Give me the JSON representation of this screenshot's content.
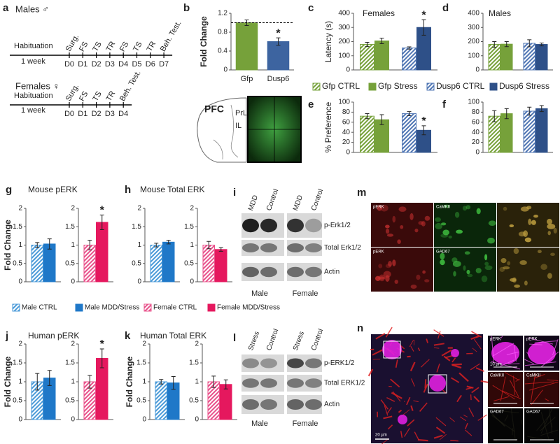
{
  "timeline": {
    "panel": "a",
    "tracks": [
      {
        "title": "Males ♂",
        "habituation": "Habituation",
        "duration": "1 week",
        "days": [
          "D0",
          "D1",
          "D2",
          "D3",
          "D4",
          "D5",
          "D6",
          "D7"
        ],
        "events": [
          "Surg.",
          "FS",
          "TS",
          "TR",
          "FS",
          "TS",
          "TR",
          "Beh. Test."
        ]
      },
      {
        "title": "Females ♀",
        "habituation": "Habituation",
        "duration": "1 week",
        "days": [
          "D0",
          "D1",
          "D2",
          "D3",
          "D4"
        ],
        "events": [
          "Surg.",
          "FS",
          "TS",
          "TR",
          "Beh. Test."
        ]
      }
    ]
  },
  "brain": {
    "region": "PFC",
    "subregions": [
      "PrL",
      "IL"
    ]
  },
  "chart_data": [
    {
      "type": "bar",
      "panel": "b",
      "ylabel": "Fold Change",
      "ylim": [
        0,
        1.2
      ],
      "yticks": [
        0,
        0.4,
        0.8,
        1.2
      ],
      "reference_line": 1,
      "categories": [
        "Gfp",
        "Dusp6"
      ],
      "groups": [
        {
          "bars": [
            {
              "value": 1.0,
              "error": 0.06,
              "color": "#76a13a"
            }
          ]
        },
        {
          "bars": [
            {
              "value": 0.6,
              "error": 0.08,
              "color": "#3d64a0",
              "star": "*"
            }
          ]
        }
      ]
    },
    {
      "type": "bar",
      "panel": "c",
      "title": "Females",
      "ylabel": "Latency (s)",
      "ylim": [
        0,
        400
      ],
      "yticks": [
        0,
        100,
        200,
        300,
        400
      ],
      "legend": [
        {
          "name": "Gfp CTRL",
          "color": "#76a13a",
          "hatch": true
        },
        {
          "name": "Gfp Stress",
          "color": "#76a13a"
        },
        {
          "name": "Dusp6 CTRL",
          "color": "#4f75b3",
          "hatch": true
        },
        {
          "name": "Dusp6 Stress",
          "color": "#2e5088"
        }
      ],
      "groups": [
        {
          "bars": [
            {
              "value": 180,
              "error": 15,
              "color": "#76a13a",
              "hatch": true
            },
            {
              "value": 205,
              "error": 20,
              "color": "#76a13a"
            }
          ]
        },
        {
          "bars": [
            {
              "value": 155,
              "error": 8,
              "color": "#4f75b3",
              "hatch": true
            },
            {
              "value": 300,
              "error": 55,
              "color": "#2e5088",
              "star": "*"
            }
          ]
        }
      ]
    },
    {
      "type": "bar",
      "panel": "d",
      "title": "Males",
      "ylim": [
        0,
        400
      ],
      "yticks": [
        0,
        100,
        200,
        300,
        400
      ],
      "groups": [
        {
          "bars": [
            {
              "value": 180,
              "error": 20,
              "color": "#76a13a",
              "hatch": true
            },
            {
              "value": 182,
              "error": 18,
              "color": "#76a13a"
            }
          ]
        },
        {
          "bars": [
            {
              "value": 188,
              "error": 25,
              "color": "#4f75b3",
              "hatch": true
            },
            {
              "value": 180,
              "error": 10,
              "color": "#2e5088"
            }
          ]
        }
      ]
    },
    {
      "type": "bar",
      "panel": "e",
      "ylabel": "% Preference",
      "ylim": [
        0,
        100
      ],
      "yticks": [
        0,
        20,
        40,
        60,
        80,
        100
      ],
      "groups": [
        {
          "bars": [
            {
              "value": 72,
              "error": 5,
              "color": "#76a13a",
              "hatch": true
            },
            {
              "value": 65,
              "error": 10,
              "color": "#76a13a"
            }
          ]
        },
        {
          "bars": [
            {
              "value": 77,
              "error": 4,
              "color": "#4f75b3",
              "hatch": true
            },
            {
              "value": 44,
              "error": 9,
              "color": "#2e5088",
              "star": "*"
            }
          ]
        }
      ]
    },
    {
      "type": "bar",
      "panel": "f",
      "ylim": [
        0,
        100
      ],
      "yticks": [
        0,
        20,
        40,
        60,
        80,
        100
      ],
      "groups": [
        {
          "bars": [
            {
              "value": 72,
              "error": 11,
              "color": "#76a13a",
              "hatch": true
            },
            {
              "value": 77,
              "error": 10,
              "color": "#76a13a"
            }
          ]
        },
        {
          "bars": [
            {
              "value": 82,
              "error": 8,
              "color": "#4f75b3",
              "hatch": true
            },
            {
              "value": 87,
              "error": 6,
              "color": "#2e5088"
            }
          ]
        }
      ]
    },
    {
      "type": "bar",
      "panel": "g",
      "title": "Mouse pERK",
      "ylabel": "Fold Change",
      "ylim": [
        0,
        2
      ],
      "yticks": [
        0,
        0.5,
        1,
        1.5,
        2
      ],
      "split": true,
      "legend": [
        {
          "name": "Male CTRL",
          "color": "#4a9ad8",
          "hatch": true
        },
        {
          "name": "Male MDD/Stress",
          "color": "#1f78c8"
        },
        {
          "name": "Female CTRL",
          "color": "#e8508a",
          "hatch": true
        },
        {
          "name": "Female MDD/Stress",
          "color": "#e5185e"
        }
      ],
      "groups": [
        {
          "bars": [
            {
              "value": 1.0,
              "error": 0.07,
              "color": "#4a9ad8",
              "hatch": true
            },
            {
              "value": 1.03,
              "error": 0.14,
              "color": "#1f78c8"
            }
          ]
        },
        {
          "bars": [
            {
              "value": 1.0,
              "error": 0.13,
              "color": "#e8508a",
              "hatch": true
            },
            {
              "value": 1.62,
              "error": 0.2,
              "color": "#e5185e",
              "star": "*"
            }
          ]
        }
      ]
    },
    {
      "type": "bar",
      "panel": "h",
      "title": "Mouse Total ERK",
      "ylim": [
        0,
        2
      ],
      "yticks": [
        0,
        0.5,
        1,
        1.5,
        2
      ],
      "split": true,
      "groups": [
        {
          "bars": [
            {
              "value": 1.0,
              "error": 0.05,
              "color": "#4a9ad8",
              "hatch": true
            },
            {
              "value": 1.08,
              "error": 0.05,
              "color": "#1f78c8"
            }
          ]
        },
        {
          "bars": [
            {
              "value": 1.0,
              "error": 0.1,
              "color": "#e8508a",
              "hatch": true
            },
            {
              "value": 0.88,
              "error": 0.05,
              "color": "#e5185e"
            }
          ]
        }
      ]
    },
    {
      "type": "bar",
      "panel": "j",
      "title": "Human pERK",
      "ylabel": "Fold Change",
      "ylim": [
        0,
        2
      ],
      "yticks": [
        0,
        0.5,
        1,
        1.5,
        2
      ],
      "split": true,
      "groups": [
        {
          "bars": [
            {
              "value": 1.0,
              "error": 0.22,
              "color": "#4a9ad8",
              "hatch": true
            },
            {
              "value": 1.1,
              "error": 0.2,
              "color": "#1f78c8"
            }
          ]
        },
        {
          "bars": [
            {
              "value": 1.0,
              "error": 0.17,
              "color": "#e8508a",
              "hatch": true
            },
            {
              "value": 1.62,
              "error": 0.25,
              "color": "#e5185e",
              "star": "*"
            }
          ]
        }
      ]
    },
    {
      "type": "bar",
      "panel": "k",
      "title": "Human Total ERK",
      "ylabel": "Fold Change",
      "ylim": [
        0,
        2
      ],
      "yticks": [
        0,
        0.5,
        1,
        1.5,
        2
      ],
      "split": true,
      "groups": [
        {
          "bars": [
            {
              "value": 1.0,
              "error": 0.06,
              "color": "#4a9ad8",
              "hatch": true
            },
            {
              "value": 0.97,
              "error": 0.17,
              "color": "#1f78c8"
            }
          ]
        },
        {
          "bars": [
            {
              "value": 1.0,
              "error": 0.15,
              "color": "#e8508a",
              "hatch": true
            },
            {
              "value": 0.93,
              "error": 0.12,
              "color": "#e5185e"
            }
          ]
        }
      ]
    }
  ],
  "blots": [
    {
      "panel": "i",
      "columns": [
        "MDD",
        "Control",
        "MDD",
        "Control"
      ],
      "rows": [
        "p-Erk1/2",
        "Total Erk1/2",
        "Actin"
      ],
      "groups": [
        "Male",
        "Female"
      ]
    },
    {
      "panel": "l",
      "columns": [
        "Stress",
        "Control",
        "Stress",
        "Control"
      ],
      "rows": [
        "p-ERK1/2",
        "Total ERK1/2",
        "Actin"
      ],
      "groups": [
        "Male",
        "Female"
      ]
    }
  ],
  "micrographs": [
    {
      "panel": "m",
      "labels": [
        "pERK",
        "CaMKII",
        "pERK",
        "GAD67"
      ]
    },
    {
      "panel": "n",
      "scale": "20 µm",
      "inset_scale": "10 µm",
      "labels": [
        "pERK",
        "pERK",
        "CaMKII",
        "CaMKII",
        "GAD67",
        "GAD67"
      ]
    }
  ]
}
